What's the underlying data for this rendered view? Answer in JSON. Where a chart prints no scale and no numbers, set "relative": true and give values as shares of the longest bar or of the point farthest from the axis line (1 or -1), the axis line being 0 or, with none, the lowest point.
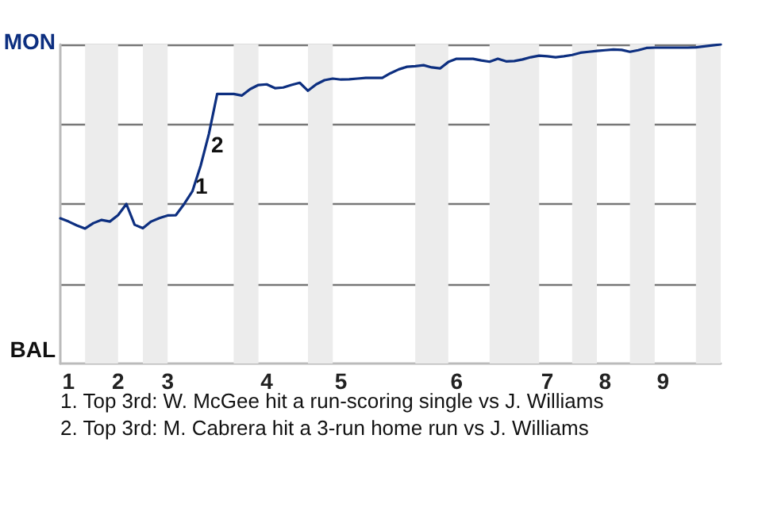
{
  "chart_data": {
    "type": "line",
    "categories": [
      null,
      "1",
      null,
      null,
      null,
      null,
      null,
      "2",
      null,
      null,
      null,
      null,
      null,
      "3",
      null,
      null,
      null,
      null,
      null,
      null,
      null,
      null,
      null,
      null,
      null,
      "4",
      null,
      null,
      null,
      null,
      null,
      null,
      null,
      null,
      "5",
      null,
      null,
      null,
      null,
      null,
      null,
      null,
      null,
      null,
      null,
      null,
      null,
      null,
      "6",
      null,
      null,
      null,
      null,
      null,
      null,
      null,
      null,
      null,
      null,
      "7",
      null,
      null,
      null,
      null,
      null,
      null,
      "8",
      null,
      null,
      null,
      null,
      null,
      null,
      "9",
      null,
      null,
      null,
      null,
      null,
      null,
      null
    ],
    "relative": true,
    "series": [
      {
        "color": "#0d2f80",
        "values": [
          0.455,
          0.445,
          0.433,
          0.423,
          0.44,
          0.45,
          0.445,
          0.465,
          0.5,
          0.435,
          0.424,
          0.445,
          0.456,
          0.464,
          0.465,
          0.5,
          0.54,
          0.62,
          0.72,
          0.845,
          0.845,
          0.845,
          0.84,
          0.86,
          0.873,
          0.875,
          0.863,
          0.865,
          0.873,
          0.88,
          0.855,
          0.875,
          0.888,
          0.893,
          0.89,
          0.891,
          0.893,
          0.895,
          0.895,
          0.895,
          0.91,
          0.922,
          0.93,
          0.932,
          0.935,
          0.928,
          0.925,
          0.945,
          0.955,
          0.955,
          0.955,
          0.95,
          0.946,
          0.955,
          0.947,
          0.948,
          0.953,
          0.96,
          0.965,
          0.963,
          0.96,
          0.963,
          0.967,
          0.974,
          0.977,
          0.98,
          0.982,
          0.984,
          0.983,
          0.977,
          0.982,
          0.989,
          0.99,
          0.99,
          0.99,
          0.99,
          0.99,
          0.991,
          0.994,
          0.997,
          1
        ]
      }
    ],
    "grid": "y",
    "marker": "none",
    "annotations": [
      "MON",
      "BAL",
      "1",
      "2",
      "1. Top 3rd: W. McGee hit a run-scoring single vs J. Williams",
      "2. Top 3rd: M. Cabrera hit a 3-run home run vs J. Williams"
    ]
  }
}
